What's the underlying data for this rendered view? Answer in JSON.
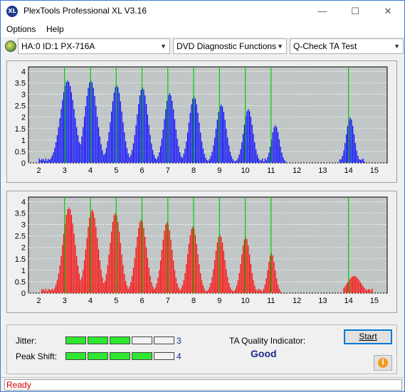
{
  "window": {
    "title": "PlexTools Professional XL V3.16",
    "app_icon_text": "XL",
    "minimize": "—",
    "maximize": "☐",
    "close": "✕"
  },
  "menu": {
    "items": [
      "Options",
      "Help"
    ]
  },
  "toolbar": {
    "drive": "HA:0 ID:1  PX-716A",
    "function": "DVD Diagnostic Functions",
    "test": "Q-Check TA Test",
    "dropdown_icon": "chevron-down-icon"
  },
  "colors": {
    "jitter_bars": "#0000ff",
    "peak_shift_bars": "#ff0000",
    "marker_lines": "#00cc00",
    "plot_background": "#c0c7c6",
    "meter_on": "#2ee82e",
    "quality_text": "#1d2b8c",
    "status_text": "#d40000"
  },
  "chart_data": [
    {
      "type": "bar",
      "x_ticks": [
        "2",
        "3",
        "4",
        "5",
        "6",
        "7",
        "8",
        "9",
        "10",
        "11",
        "12",
        "13",
        "14",
        "15"
      ],
      "y_ticks": [
        "0",
        "0.5",
        "1",
        "1.5",
        "2",
        "2.5",
        "3",
        "3.5",
        "4"
      ],
      "xlim": [
        1.6,
        15.5
      ],
      "ylim": [
        0,
        4.2
      ],
      "markers": [
        3,
        4,
        5,
        6,
        7,
        8,
        9,
        10,
        11,
        14
      ],
      "peaks": [
        {
          "center": 3.1,
          "height": 3.6,
          "width": 0.42
        },
        {
          "center": 4.0,
          "height": 3.6,
          "width": 0.36
        },
        {
          "center": 5.0,
          "height": 3.4,
          "width": 0.34
        },
        {
          "center": 6.0,
          "height": 3.3,
          "width": 0.33
        },
        {
          "center": 7.05,
          "height": 3.05,
          "width": 0.32
        },
        {
          "center": 8.0,
          "height": 2.9,
          "width": 0.31
        },
        {
          "center": 9.05,
          "height": 2.55,
          "width": 0.3
        },
        {
          "center": 10.1,
          "height": 2.35,
          "width": 0.28
        },
        {
          "center": 11.15,
          "height": 1.65,
          "width": 0.24
        },
        {
          "center": 14.05,
          "height": 2.0,
          "width": 0.24
        }
      ],
      "ranges": [
        [
          2.0,
          11.6
        ],
        [
          13.65,
          14.65
        ]
      ]
    },
    {
      "type": "bar",
      "x_ticks": [
        "2",
        "3",
        "4",
        "5",
        "6",
        "7",
        "8",
        "9",
        "10",
        "11",
        "12",
        "13",
        "14",
        "15"
      ],
      "y_ticks": [
        "0",
        "0.5",
        "1",
        "1.5",
        "2",
        "2.5",
        "3",
        "3.5",
        "4"
      ],
      "xlim": [
        1.6,
        15.5
      ],
      "ylim": [
        0,
        4.2
      ],
      "markers": [
        3,
        4,
        5,
        6,
        7,
        8,
        9,
        10,
        11,
        14
      ],
      "peaks": [
        {
          "center": 3.15,
          "height": 3.75,
          "width": 0.36
        },
        {
          "center": 4.05,
          "height": 3.65,
          "width": 0.34
        },
        {
          "center": 4.95,
          "height": 3.5,
          "width": 0.32
        },
        {
          "center": 5.95,
          "height": 3.2,
          "width": 0.32
        },
        {
          "center": 6.95,
          "height": 3.1,
          "width": 0.31
        },
        {
          "center": 7.95,
          "height": 2.9,
          "width": 0.3
        },
        {
          "center": 9.0,
          "height": 2.55,
          "width": 0.29
        },
        {
          "center": 10.0,
          "height": 2.45,
          "width": 0.27
        },
        {
          "center": 11.0,
          "height": 1.75,
          "width": 0.22
        },
        {
          "center": 14.2,
          "height": 0.75,
          "width": 0.4
        }
      ],
      "ranges": [
        [
          2.1,
          11.4
        ],
        [
          13.8,
          14.95
        ]
      ]
    }
  ],
  "meters": {
    "jitter": {
      "label": "Jitter:",
      "value": "3",
      "level": 3,
      "max": 5
    },
    "peak_shift": {
      "label": "Peak Shift:",
      "value": "4",
      "level": 4,
      "max": 5
    }
  },
  "ta_quality": {
    "label": "TA Quality Indicator:",
    "value": "Good"
  },
  "buttons": {
    "start": "Start",
    "info_glyph": "i"
  },
  "status": {
    "text": "Ready"
  }
}
